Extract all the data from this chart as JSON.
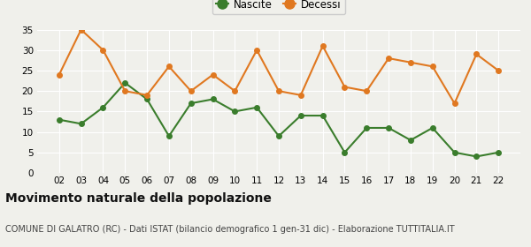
{
  "years": [
    "02",
    "03",
    "04",
    "05",
    "06",
    "07",
    "08",
    "09",
    "10",
    "11",
    "12",
    "13",
    "14",
    "15",
    "16",
    "17",
    "18",
    "19",
    "20",
    "21",
    "22"
  ],
  "nascite": [
    13,
    12,
    16,
    22,
    18,
    9,
    17,
    18,
    15,
    16,
    9,
    14,
    14,
    5,
    11,
    11,
    8,
    11,
    5,
    4,
    5
  ],
  "decessi": [
    24,
    35,
    30,
    20,
    19,
    26,
    20,
    24,
    20,
    30,
    20,
    19,
    31,
    21,
    20,
    28,
    27,
    26,
    17,
    29,
    25
  ],
  "nascite_color": "#3a7d2c",
  "decessi_color": "#e07820",
  "title": "Movimento naturale della popolazione",
  "subtitle": "COMUNE DI GALATRO (RC) - Dati ISTAT (bilancio demografico 1 gen-31 dic) - Elaborazione TUTTITALIA.IT",
  "legend_nascite": "Nascite",
  "legend_decessi": "Decessi",
  "ylim": [
    0,
    35
  ],
  "yticks": [
    0,
    5,
    10,
    15,
    20,
    25,
    30,
    35
  ],
  "bg_color": "#f0f0eb",
  "grid_color": "#ffffff",
  "marker": "o",
  "marker_size": 4,
  "line_width": 1.5,
  "title_fontsize": 10,
  "subtitle_fontsize": 7
}
